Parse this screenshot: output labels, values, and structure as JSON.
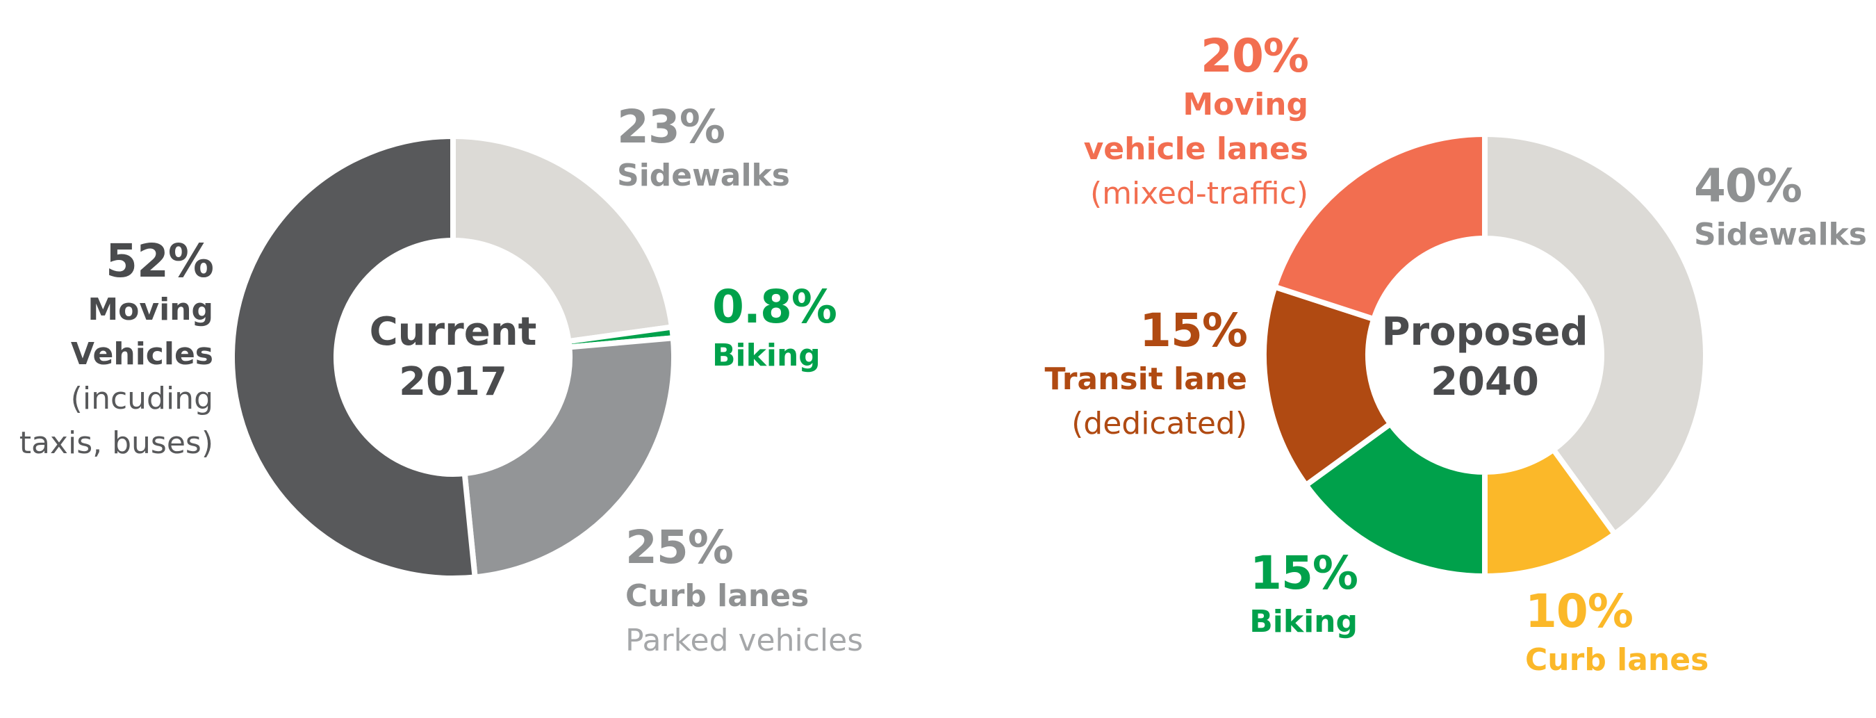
{
  "chart_data": [
    {
      "type": "pie",
      "center_label": [
        "Current",
        "2017"
      ],
      "slices": [
        {
          "label": "Sidewalks",
          "value": 23,
          "value_label": "23%",
          "color": "#dcdad6",
          "text_color": "#8f9192",
          "lines": [
            "Sidewalks"
          ]
        },
        {
          "label": "Biking",
          "value": 0.8,
          "value_label": "0.8%",
          "color": "#00a14b",
          "text_color": "#00a14b",
          "lines": [
            "Biking"
          ]
        },
        {
          "label": "Curb lanes",
          "value": 25,
          "value_label": "25%",
          "color": "#939597",
          "text_color": "#8f9192",
          "lines": [
            "Curb lanes"
          ],
          "sub_lines": [
            "Parked vehicles"
          ],
          "sub_color": "#a5a7a9"
        },
        {
          "label": "Moving Vehicles",
          "value": 52,
          "value_label": "52%",
          "color": "#58595b",
          "text_color": "#4a4b4d",
          "lines": [
            "Moving",
            "Vehicles"
          ],
          "sub_lines": [
            "(incuding",
            "taxis, buses)"
          ],
          "sub_color": "#58595b"
        }
      ]
    },
    {
      "type": "pie",
      "center_label": [
        "Proposed",
        "2040"
      ],
      "slices": [
        {
          "label": "Sidewalks",
          "value": 40,
          "value_label": "40%",
          "color": "#dcdad6",
          "text_color": "#8f9192",
          "lines": [
            "Sidewalks"
          ]
        },
        {
          "label": "Curb lanes",
          "value": 10,
          "value_label": "10%",
          "color": "#fbb829",
          "text_color": "#fbb829",
          "lines": [
            "Curb lanes"
          ]
        },
        {
          "label": "Biking",
          "value": 15,
          "value_label": "15%",
          "color": "#00a14b",
          "text_color": "#00a14b",
          "lines": [
            "Biking"
          ]
        },
        {
          "label": "Transit lane",
          "value": 15,
          "value_label": "15%",
          "color": "#b04a12",
          "text_color": "#b04a12",
          "lines": [
            "Transit lane"
          ],
          "sub_lines": [
            "(dedicated)"
          ],
          "sub_color": "#b04a12"
        },
        {
          "label": "Moving vehicle lanes",
          "value": 20,
          "value_label": "20%",
          "color": "#f26e50",
          "text_color": "#f26e50",
          "lines": [
            "Moving",
            "vehicle lanes"
          ],
          "sub_lines": [
            "(mixed-traffic)"
          ],
          "sub_color": "#f26e50"
        }
      ]
    }
  ]
}
